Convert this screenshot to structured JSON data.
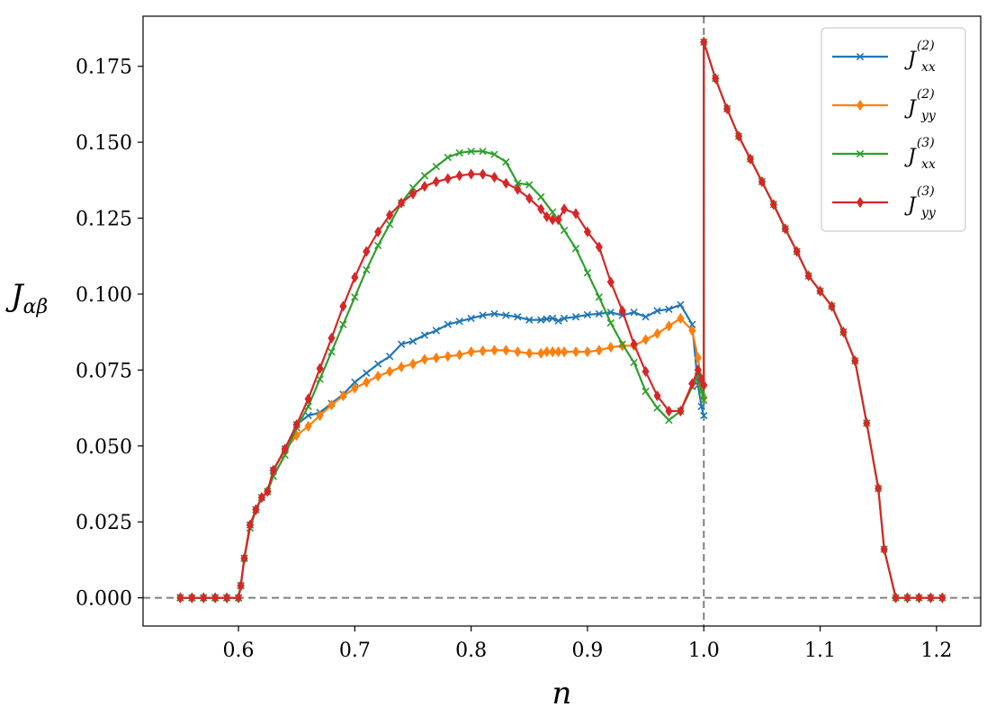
{
  "chart_data": {
    "type": "line",
    "xlabel": "n",
    "ylabel": "J",
    "ylabel_sub": "αβ",
    "xlim": [
      0.518,
      1.238
    ],
    "ylim": [
      -0.0093,
      0.1915
    ],
    "xticks": [
      0.6,
      0.7,
      0.8,
      0.9,
      1.0,
      1.1,
      1.2
    ],
    "xtick_labels": [
      "0.6",
      "0.7",
      "0.8",
      "0.9",
      "1.0",
      "1.1",
      "1.2"
    ],
    "yticks": [
      0.0,
      0.025,
      0.05,
      0.075,
      0.1,
      0.125,
      0.15,
      0.175
    ],
    "ytick_labels": [
      "0.000",
      "0.025",
      "0.050",
      "0.075",
      "0.100",
      "0.125",
      "0.150",
      "0.175"
    ],
    "reference_lines": [
      {
        "orientation": "horizontal",
        "value": 0.0,
        "color": "#808080",
        "style": "dashed"
      },
      {
        "orientation": "vertical",
        "value": 1.0,
        "color": "#808080",
        "style": "dashed"
      }
    ],
    "legend_position": "top-right",
    "series": [
      {
        "name": "J",
        "name_sub": "xx",
        "name_sup": "(2)",
        "color": "#1f77b4",
        "marker": "x",
        "x": [
          0.55,
          0.56,
          0.57,
          0.58,
          0.59,
          0.6,
          0.602,
          0.605,
          0.61,
          0.615,
          0.62,
          0.625,
          0.63,
          0.64,
          0.65,
          0.66,
          0.67,
          0.68,
          0.69,
          0.7,
          0.71,
          0.72,
          0.73,
          0.74,
          0.75,
          0.76,
          0.77,
          0.78,
          0.79,
          0.8,
          0.81,
          0.82,
          0.83,
          0.84,
          0.85,
          0.86,
          0.865,
          0.87,
          0.875,
          0.88,
          0.89,
          0.9,
          0.91,
          0.92,
          0.93,
          0.94,
          0.95,
          0.96,
          0.97,
          0.98,
          0.99,
          0.995,
          0.998,
          1.0
        ],
        "y": [
          0,
          0,
          0,
          0,
          0,
          0,
          0.004,
          0.013,
          0.024,
          0.029,
          0.033,
          0.035,
          0.042,
          0.049,
          0.057,
          0.06,
          0.061,
          0.064,
          0.067,
          0.071,
          0.074,
          0.077,
          0.0795,
          0.0835,
          0.0845,
          0.0865,
          0.088,
          0.09,
          0.091,
          0.092,
          0.093,
          0.0935,
          0.093,
          0.0925,
          0.0915,
          0.0915,
          0.0918,
          0.092,
          0.0912,
          0.092,
          0.0925,
          0.0932,
          0.0935,
          0.094,
          0.093,
          0.094,
          0.0925,
          0.0945,
          0.095,
          0.0965,
          0.09,
          0.07,
          0.063,
          0.06
        ]
      },
      {
        "name": "J",
        "name_sub": "yy",
        "name_sup": "(2)",
        "color": "#ff7f0e",
        "marker": "d",
        "x": [
          0.55,
          0.56,
          0.57,
          0.58,
          0.59,
          0.6,
          0.602,
          0.605,
          0.61,
          0.615,
          0.62,
          0.625,
          0.63,
          0.64,
          0.65,
          0.66,
          0.67,
          0.68,
          0.69,
          0.7,
          0.71,
          0.72,
          0.73,
          0.74,
          0.75,
          0.76,
          0.77,
          0.78,
          0.79,
          0.8,
          0.81,
          0.82,
          0.83,
          0.84,
          0.85,
          0.86,
          0.865,
          0.87,
          0.875,
          0.88,
          0.89,
          0.9,
          0.91,
          0.92,
          0.93,
          0.94,
          0.95,
          0.96,
          0.97,
          0.98,
          0.99,
          0.995,
          0.998,
          1.0
        ],
        "y": [
          0,
          0,
          0,
          0,
          0,
          0,
          0.004,
          0.013,
          0.024,
          0.029,
          0.033,
          0.035,
          0.042,
          0.0485,
          0.0535,
          0.0565,
          0.06,
          0.0635,
          0.0665,
          0.069,
          0.071,
          0.073,
          0.0745,
          0.076,
          0.077,
          0.0785,
          0.079,
          0.0795,
          0.08,
          0.081,
          0.0813,
          0.0815,
          0.0815,
          0.081,
          0.0805,
          0.0805,
          0.081,
          0.081,
          0.081,
          0.081,
          0.081,
          0.081,
          0.0815,
          0.0825,
          0.083,
          0.083,
          0.085,
          0.087,
          0.0895,
          0.092,
          0.088,
          0.079,
          0.07,
          0.066
        ]
      },
      {
        "name": "J",
        "name_sub": "xx",
        "name_sup": "(3)",
        "color": "#2ca02c",
        "marker": "x",
        "x": [
          0.55,
          0.56,
          0.57,
          0.58,
          0.59,
          0.6,
          0.602,
          0.605,
          0.61,
          0.615,
          0.62,
          0.625,
          0.63,
          0.64,
          0.65,
          0.66,
          0.67,
          0.68,
          0.69,
          0.7,
          0.71,
          0.72,
          0.73,
          0.74,
          0.75,
          0.76,
          0.77,
          0.78,
          0.79,
          0.8,
          0.81,
          0.82,
          0.83,
          0.84,
          0.85,
          0.86,
          0.87,
          0.88,
          0.89,
          0.9,
          0.91,
          0.92,
          0.93,
          0.94,
          0.95,
          0.96,
          0.97,
          0.98,
          0.99,
          0.995,
          0.998,
          1.0,
          1.0,
          1.01,
          1.02,
          1.03,
          1.04,
          1.05,
          1.06,
          1.07,
          1.08,
          1.09,
          1.1,
          1.11,
          1.12,
          1.13,
          1.14,
          1.15,
          1.155,
          1.165,
          1.175,
          1.185,
          1.195,
          1.205
        ],
        "y": [
          0,
          0,
          0,
          0,
          0,
          0,
          0.004,
          0.013,
          0.023,
          0.029,
          0.033,
          0.035,
          0.04,
          0.047,
          0.056,
          0.063,
          0.072,
          0.081,
          0.09,
          0.099,
          0.108,
          0.116,
          0.123,
          0.13,
          0.135,
          0.139,
          0.142,
          0.145,
          0.1465,
          0.147,
          0.147,
          0.146,
          0.1435,
          0.1365,
          0.136,
          0.132,
          0.127,
          0.121,
          0.115,
          0.107,
          0.099,
          0.0905,
          0.0835,
          0.0775,
          0.068,
          0.0625,
          0.0585,
          0.0615,
          0.0695,
          0.073,
          0.068,
          0.065,
          0.183,
          0.171,
          0.161,
          0.152,
          0.1445,
          0.137,
          0.1295,
          0.1215,
          0.114,
          0.106,
          0.101,
          0.096,
          0.0875,
          0.078,
          0.0575,
          0.036,
          0.016,
          0,
          0,
          0,
          0,
          0
        ]
      },
      {
        "name": "J",
        "name_sub": "yy",
        "name_sup": "(3)",
        "color": "#d62728",
        "marker": "d",
        "x": [
          0.55,
          0.56,
          0.57,
          0.58,
          0.59,
          0.6,
          0.602,
          0.605,
          0.61,
          0.615,
          0.62,
          0.625,
          0.63,
          0.64,
          0.65,
          0.66,
          0.67,
          0.68,
          0.69,
          0.7,
          0.71,
          0.72,
          0.73,
          0.74,
          0.75,
          0.76,
          0.77,
          0.78,
          0.79,
          0.8,
          0.81,
          0.82,
          0.83,
          0.84,
          0.85,
          0.86,
          0.865,
          0.87,
          0.875,
          0.88,
          0.89,
          0.9,
          0.91,
          0.92,
          0.93,
          0.94,
          0.95,
          0.96,
          0.97,
          0.98,
          0.99,
          0.995,
          0.998,
          1.0,
          1.0,
          1.01,
          1.02,
          1.03,
          1.04,
          1.05,
          1.06,
          1.07,
          1.08,
          1.09,
          1.1,
          1.11,
          1.12,
          1.13,
          1.14,
          1.15,
          1.155,
          1.165,
          1.175,
          1.185,
          1.195,
          1.205
        ],
        "y": [
          0,
          0,
          0,
          0,
          0,
          0,
          0.004,
          0.013,
          0.024,
          0.029,
          0.033,
          0.035,
          0.042,
          0.049,
          0.057,
          0.0655,
          0.0755,
          0.0855,
          0.096,
          0.1055,
          0.114,
          0.1205,
          0.126,
          0.13,
          0.133,
          0.1355,
          0.137,
          0.138,
          0.139,
          0.1395,
          0.1395,
          0.1385,
          0.1365,
          0.1345,
          0.1315,
          0.128,
          0.1255,
          0.1245,
          0.1245,
          0.128,
          0.1265,
          0.1205,
          0.1155,
          0.104,
          0.0945,
          0.0835,
          0.0745,
          0.0665,
          0.0615,
          0.0615,
          0.0705,
          0.075,
          0.072,
          0.07,
          0.183,
          0.171,
          0.161,
          0.152,
          0.1445,
          0.137,
          0.1295,
          0.1215,
          0.114,
          0.106,
          0.101,
          0.096,
          0.0875,
          0.078,
          0.0575,
          0.036,
          0.016,
          0,
          0,
          0,
          0,
          0
        ]
      }
    ]
  }
}
